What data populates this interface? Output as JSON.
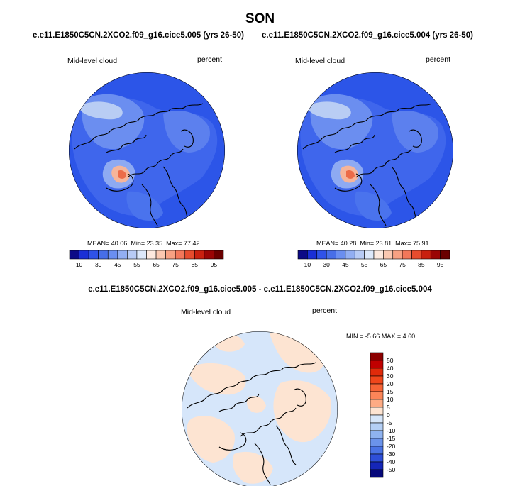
{
  "figure": {
    "season": "SON",
    "case_left": "e.e11.E1850C5CN.2XCO2.f09_g16.cice5.005 (yrs 26-50)",
    "case_right": "e.e11.E1850C5CN.2XCO2.f09_g16.cice5.004 (yrs 26-50)",
    "diff_title": "e.e11.E1850C5CN.2XCO2.f09_g16.cice5.005 - e.e11.E1850C5CN.2XCO2.f09_g16.cice5.004"
  },
  "panels": {
    "left": {
      "field_label": "Mid-level cloud",
      "unit_label": "percent",
      "mean_label": "MEAN=",
      "mean": "40.06",
      "min_label": "Min=",
      "min": "23.35",
      "max_label": "Max=",
      "max": "77.42"
    },
    "right": {
      "field_label": "Mid-level cloud",
      "unit_label": "percent",
      "mean_label": "MEAN=",
      "mean": "40.28",
      "min_label": "Min=",
      "min": "23.81",
      "max_label": "Max=",
      "max": "75.91"
    },
    "diff": {
      "field_label": "Mid-level cloud",
      "unit_label": "percent",
      "min_label": "MIN =",
      "min": "-5.66",
      "max_label": "MAX =",
      "max": "4.60"
    }
  },
  "chart_data": [
    {
      "type": "heatmap",
      "title": "",
      "projection": "north polar stereographic",
      "colorbar_orientation": "horizontal",
      "colorbar_ticks": [
        "10",
        "30",
        "45",
        "55",
        "65",
        "75",
        "85",
        "95"
      ],
      "colorbar_colors": [
        "#0c0a86",
        "#1a2fd6",
        "#2f52e8",
        "#476ee8",
        "#6a8ef0",
        "#92aef2",
        "#b8cbf5",
        "#dde8fa",
        "#fde9df",
        "#fbc8b1",
        "#f7a183",
        "#f2775a",
        "#e64c2e",
        "#c9200f",
        "#9a0505",
        "#6a0000"
      ],
      "stats": {
        "mean": 40.06,
        "min": 23.35,
        "max": 77.42
      }
    },
    {
      "type": "heatmap",
      "title": "",
      "projection": "north polar stereographic",
      "colorbar_orientation": "horizontal",
      "colorbar_ticks": [
        "10",
        "30",
        "45",
        "55",
        "65",
        "75",
        "85",
        "95"
      ],
      "colorbar_colors": [
        "#0c0a86",
        "#1a2fd6",
        "#2f52e8",
        "#476ee8",
        "#6a8ef0",
        "#92aef2",
        "#b8cbf5",
        "#dde8fa",
        "#fde9df",
        "#fbc8b1",
        "#f7a183",
        "#f2775a",
        "#e64c2e",
        "#c9200f",
        "#9a0505",
        "#6a0000"
      ],
      "stats": {
        "mean": 40.28,
        "min": 23.81,
        "max": 75.91
      }
    },
    {
      "type": "heatmap",
      "title": "",
      "projection": "north polar stereographic",
      "colorbar_orientation": "vertical",
      "colorbar_ticks": [
        "50",
        "40",
        "30",
        "20",
        "15",
        "10",
        "5",
        "0",
        "-5",
        "-10",
        "-15",
        "-20",
        "-30",
        "-40",
        "-50"
      ],
      "colorbar_colors": [
        "#8b0000",
        "#c00000",
        "#e02a0a",
        "#f0461b",
        "#f76436",
        "#fb8558",
        "#fdab84",
        "#fde4d2",
        "#d6e6fa",
        "#b4cff5",
        "#8fb3f0",
        "#6b93ea",
        "#4a73e4",
        "#2e4fd8",
        "#1526b8",
        "#06087a"
      ],
      "stats": {
        "min": -5.66,
        "max": 4.6
      }
    }
  ]
}
